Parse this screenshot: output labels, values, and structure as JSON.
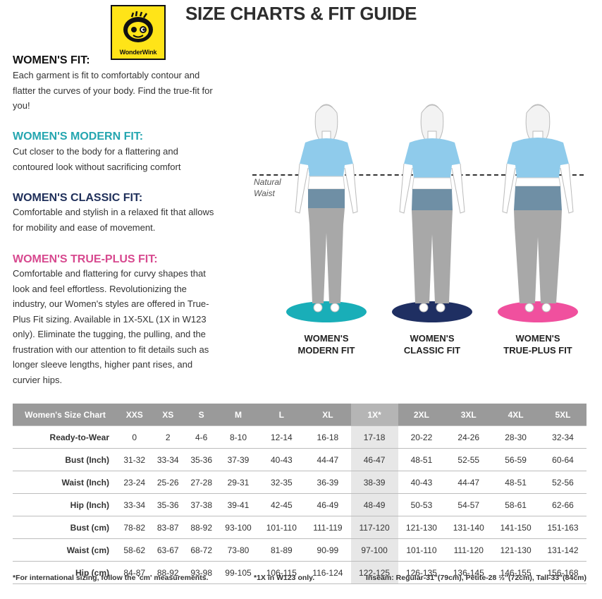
{
  "brand": {
    "name": "WonderWink",
    "color": "#ffe418"
  },
  "title": "SIZE CHARTS & FIT GUIDE",
  "sections": [
    {
      "heading": "WOMEN'S FIT:",
      "desc": "Each garment is fit to comfortably contour and flatter the curves of your body. Find the true-fit for you!"
    },
    {
      "heading": "WOMEN'S MODERN FIT:",
      "desc": "Cut closer to the body for a flattering and contoured look without sacrificing comfort"
    },
    {
      "heading": "WOMEN'S CLASSIC FIT:",
      "desc": "Comfortable and stylish in a relaxed fit that allows for mobility and ease of movement."
    },
    {
      "heading": "WOMEN'S TRUE-PLUS FIT:",
      "desc": "Comfortable and flattering for curvy shapes that look and feel effortless. Revolutionizing the industry, our Women's styles are offered in True-Plus Fit sizing. Available in 1X-5XL (1X in W123 only). Eliminate the tugging, the pulling, and the frustration with our attention to fit details such as longer sleeve lengths, higher pant rises, and curvier hips."
    }
  ],
  "illustration": {
    "waist_label_line1": "Natural",
    "waist_label_line2": "Waist",
    "figures": [
      {
        "line1": "WOMEN'S",
        "line2": "MODERN FIT",
        "color": "#19aeb8"
      },
      {
        "line1": "WOMEN'S",
        "line2": "CLASSIC FIT",
        "color": "#1f2f62"
      },
      {
        "line1": "WOMEN'S",
        "line2": "TRUE-PLUS FIT",
        "color": "#f0509e"
      }
    ]
  },
  "table": {
    "header": [
      "Women's Size Chart",
      "XXS",
      "XS",
      "S",
      "M",
      "L",
      "XL",
      "1X*",
      "2XL",
      "3XL",
      "4XL",
      "5XL"
    ],
    "highlight_column": "1X*",
    "rows": [
      [
        "Ready-to-Wear",
        "0",
        "2",
        "4-6",
        "8-10",
        "12-14",
        "16-18",
        "17-18",
        "20-22",
        "24-26",
        "28-30",
        "32-34"
      ],
      [
        "Bust (Inch)",
        "31-32",
        "33-34",
        "35-36",
        "37-39",
        "40-43",
        "44-47",
        "46-47",
        "48-51",
        "52-55",
        "56-59",
        "60-64"
      ],
      [
        "Waist (Inch)",
        "23-24",
        "25-26",
        "27-28",
        "29-31",
        "32-35",
        "36-39",
        "38-39",
        "40-43",
        "44-47",
        "48-51",
        "52-56"
      ],
      [
        "Hip (Inch)",
        "33-34",
        "35-36",
        "37-38",
        "39-41",
        "42-45",
        "46-49",
        "48-49",
        "50-53",
        "54-57",
        "58-61",
        "62-66"
      ],
      [
        "Bust (cm)",
        "78-82",
        "83-87",
        "88-92",
        "93-100",
        "101-110",
        "111-119",
        "117-120",
        "121-130",
        "131-140",
        "141-150",
        "151-163"
      ],
      [
        "Waist (cm)",
        "58-62",
        "63-67",
        "68-72",
        "73-80",
        "81-89",
        "90-99",
        "97-100",
        "101-110",
        "111-120",
        "121-130",
        "131-142"
      ],
      [
        "Hip (cm)",
        "84-87",
        "88-92",
        "93-98",
        "99-105",
        "106-115",
        "116-124",
        "122-125",
        "126-135",
        "136-145",
        "146-155",
        "156-168"
      ]
    ]
  },
  "footnotes": {
    "international": "*For international sizing, follow the 'cm' measurements.",
    "onex": "*1X in W123 only.",
    "inseam": "Inseam: Regular-31\"(79cm), Petite-28 ½\"(72cm), Tall-33\"(84cm)"
  }
}
